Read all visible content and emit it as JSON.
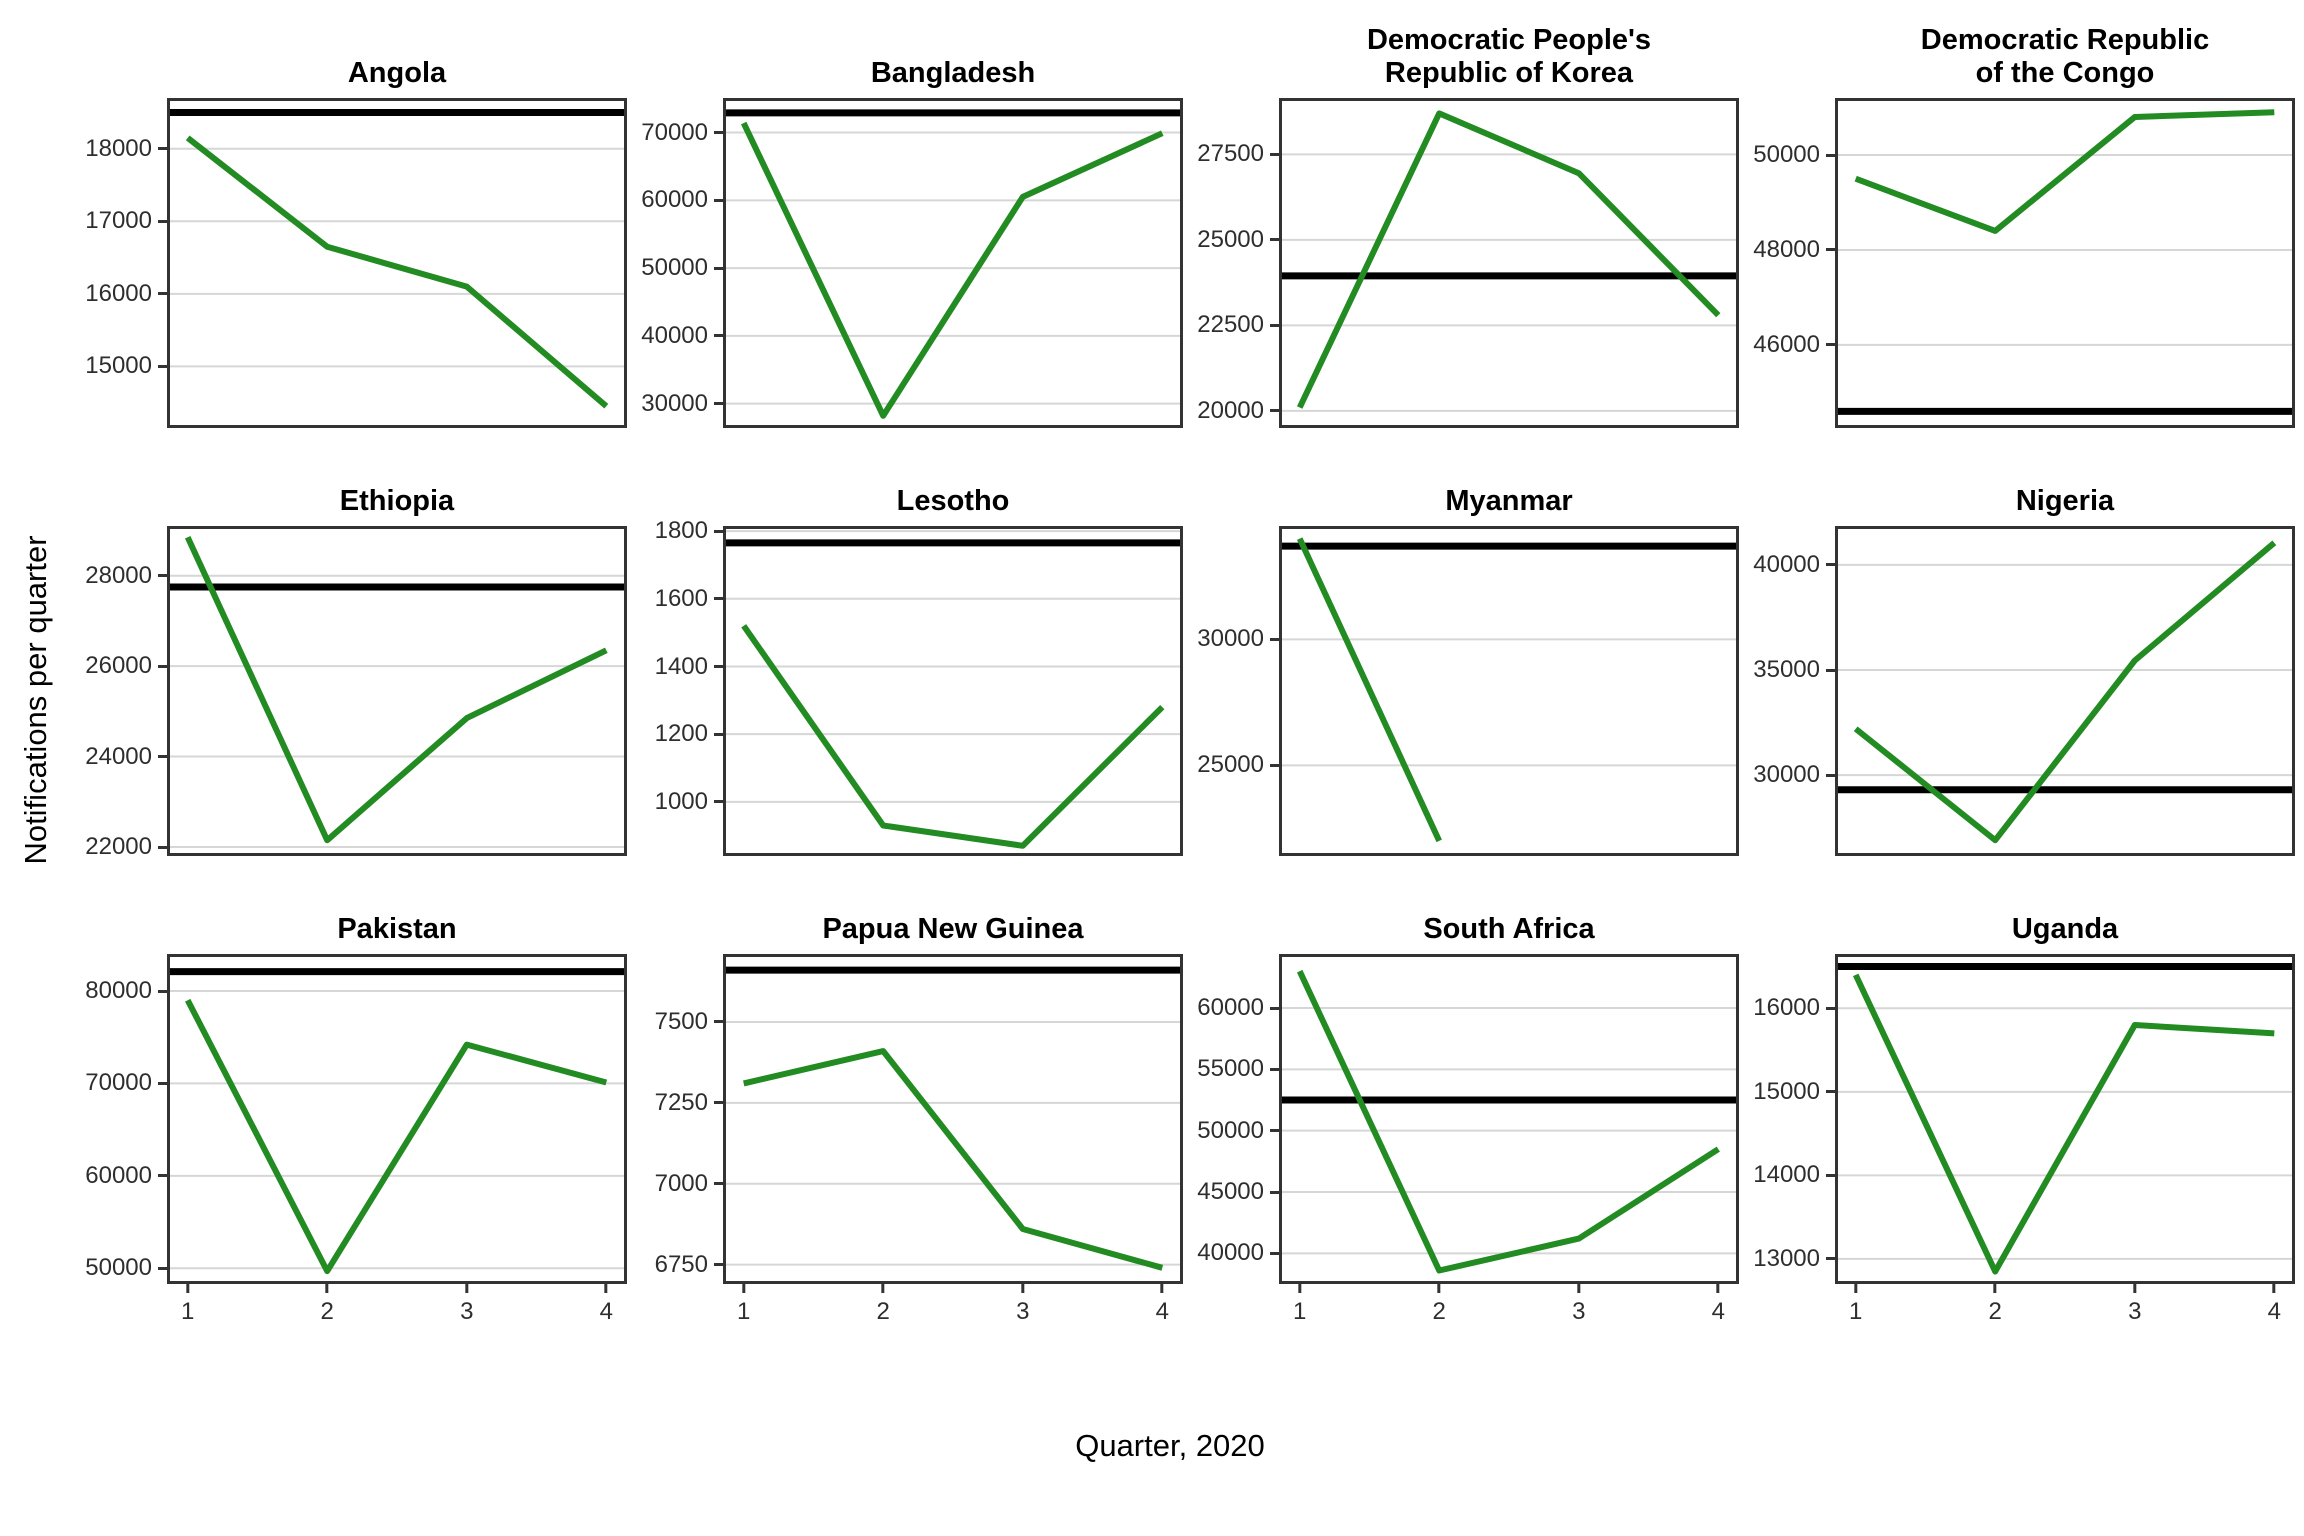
{
  "figure": {
    "x_axis_label": "Quarter, 2020",
    "y_axis_label": "Notifications per quarter",
    "x_tick_labels": [
      "1",
      "2",
      "3",
      "4"
    ],
    "colors": {
      "series_line": "#228B22",
      "reference_line": "#000000",
      "gridline": "#d6d6d6",
      "panel_border": "#333333",
      "tick_label": "#2e2e2e"
    }
  },
  "chart_data": [
    {
      "type": "line",
      "title": "Angola",
      "x": [
        1,
        2,
        3,
        4
      ],
      "values": [
        18150,
        16650,
        16100,
        14450
      ],
      "reference_line": 18500,
      "yticks": [
        18000,
        17000,
        16000,
        15000
      ],
      "ylim": [
        14150,
        18700
      ],
      "xlim": [
        1,
        4
      ],
      "grid": "horizontal-only"
    },
    {
      "type": "line",
      "title": "Bangladesh",
      "x": [
        1,
        2,
        3,
        4
      ],
      "values": [
        71400,
        28200,
        60500,
        69900
      ],
      "reference_line": 72900,
      "yticks": [
        70000,
        60000,
        50000,
        40000,
        30000
      ],
      "ylim": [
        26400,
        75100
      ],
      "xlim": [
        1,
        4
      ],
      "grid": "horizontal-only"
    },
    {
      "type": "line",
      "title": "Democratic People's\nRepublic of Korea",
      "x": [
        1,
        2,
        3,
        4
      ],
      "values": [
        20100,
        28700,
        26950,
        22800
      ],
      "reference_line": 23950,
      "yticks": [
        27500,
        25000,
        22500,
        20000
      ],
      "ylim": [
        19500,
        29150
      ],
      "xlim": [
        1,
        4
      ],
      "grid": "horizontal-only"
    },
    {
      "type": "line",
      "title": "Democratic Republic\nof the Congo",
      "x": [
        1,
        2,
        3,
        4
      ],
      "values": [
        49500,
        48400,
        50800,
        50900
      ],
      "reference_line": 44600,
      "yticks": [
        50000,
        48000,
        46000
      ],
      "ylim": [
        44250,
        51200
      ],
      "xlim": [
        1,
        4
      ],
      "grid": "horizontal-only"
    },
    {
      "type": "line",
      "title": "Ethiopia",
      "x": [
        1,
        2,
        3,
        4
      ],
      "values": [
        28850,
        22150,
        24850,
        26350
      ],
      "reference_line": 27750,
      "yticks": [
        28000,
        26000,
        24000,
        22000
      ],
      "ylim": [
        21800,
        29100
      ],
      "xlim": [
        1,
        4
      ],
      "grid": "horizontal-only"
    },
    {
      "type": "line",
      "title": "Lesotho",
      "x": [
        1,
        2,
        3,
        4
      ],
      "values": [
        1520,
        930,
        870,
        1280
      ],
      "reference_line": 1765,
      "yticks": [
        1800,
        1600,
        1400,
        1200,
        1000
      ],
      "ylim": [
        840,
        1815
      ],
      "xlim": [
        1,
        4
      ],
      "grid": "horizontal-only"
    },
    {
      "type": "line",
      "title": "Myanmar",
      "x": [
        1,
        2
      ],
      "values": [
        34000,
        22000
      ],
      "reference_line": 33700,
      "yticks": [
        30000,
        25000
      ],
      "ylim": [
        21400,
        34500
      ],
      "xlim": [
        1,
        4
      ],
      "grid": "horizontal-only"
    },
    {
      "type": "line",
      "title": "Nigeria",
      "x": [
        1,
        2,
        3,
        4
      ],
      "values": [
        32200,
        26900,
        35450,
        41050
      ],
      "reference_line": 29300,
      "yticks": [
        40000,
        35000,
        30000
      ],
      "ylim": [
        26150,
        41850
      ],
      "xlim": [
        1,
        4
      ],
      "grid": "horizontal-only"
    },
    {
      "type": "line",
      "title": "Pakistan",
      "x": [
        1,
        2,
        3,
        4
      ],
      "values": [
        79000,
        49700,
        74200,
        70100
      ],
      "reference_line": 82100,
      "yticks": [
        80000,
        70000,
        60000,
        50000
      ],
      "ylim": [
        48300,
        84000
      ],
      "xlim": [
        1,
        4
      ],
      "grid": "horizontal-only"
    },
    {
      "type": "line",
      "title": "Papua New Guinea",
      "x": [
        1,
        2,
        3,
        4
      ],
      "values": [
        7310,
        7410,
        6860,
        6740
      ],
      "reference_line": 7660,
      "yticks": [
        7500,
        7250,
        7000,
        6750
      ],
      "ylim": [
        6690,
        7710
      ],
      "xlim": [
        1,
        4
      ],
      "grid": "horizontal-only"
    },
    {
      "type": "line",
      "title": "South Africa",
      "x": [
        1,
        2,
        3,
        4
      ],
      "values": [
        63000,
        38600,
        41200,
        48500
      ],
      "reference_line": 52500,
      "yticks": [
        60000,
        55000,
        50000,
        45000,
        40000
      ],
      "ylim": [
        37500,
        64400
      ],
      "xlim": [
        1,
        4
      ],
      "grid": "horizontal-only"
    },
    {
      "type": "line",
      "title": "Uganda",
      "x": [
        1,
        2,
        3,
        4
      ],
      "values": [
        16400,
        12850,
        15800,
        15700
      ],
      "reference_line": 16500,
      "yticks": [
        16000,
        15000,
        14000,
        13000
      ],
      "ylim": [
        12700,
        16650
      ],
      "xlim": [
        1,
        4
      ],
      "grid": "horizontal-only"
    }
  ]
}
